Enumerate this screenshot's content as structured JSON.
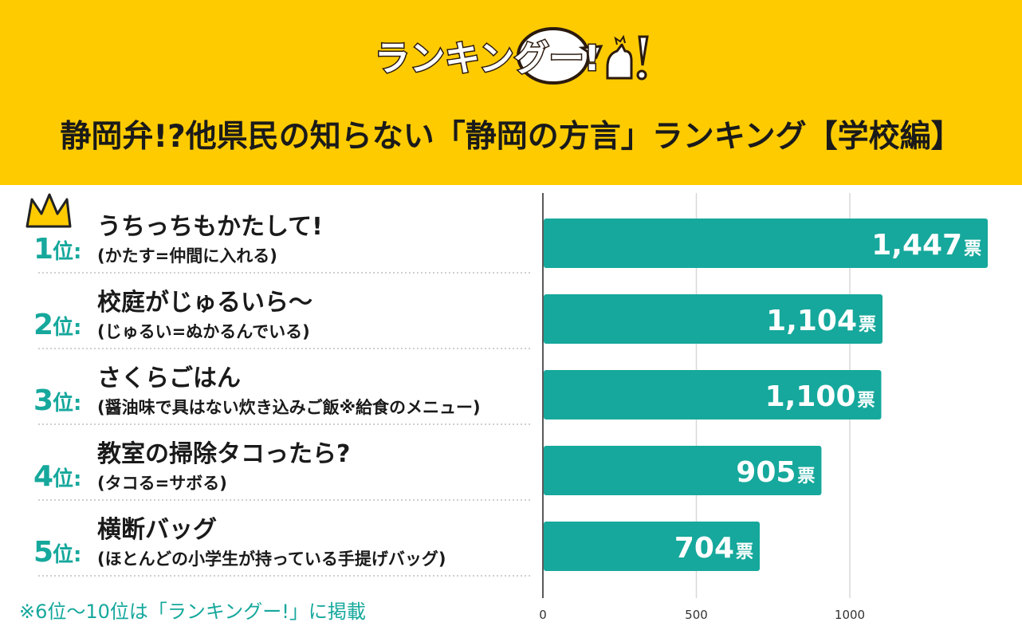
{
  "header": {
    "logo_text": "ランキングー!",
    "title": "静岡弁!?他県民の知らない「静岡の方言」ランキング【学校編】"
  },
  "colors": {
    "header_bg": "#FECB00",
    "bar": "#16A89C",
    "rank_text": "#16A89C",
    "crown": "#FECB00"
  },
  "icons": {
    "crown": "crown-icon",
    "logo": "rankingoo-logo-icon"
  },
  "chart_data": {
    "type": "bar",
    "orientation": "horizontal",
    "categories": [
      "うちっちもかたして!",
      "校庭がじゅるいら〜",
      "さくらごはん",
      "教室の掃除タコったら?",
      "横断バッグ"
    ],
    "notes": [
      "(かたす=仲間に入れる)",
      "(じゅるい=ぬかるんでいる)",
      "(醤油味で具はない炊き込みご飯※給食のメニュー)",
      "(タコる=サボる)",
      "(ほとんどの小学生が持っている手提げバッグ)"
    ],
    "ranks": [
      "1",
      "2",
      "3",
      "4",
      "5"
    ],
    "rank_suffix": "位",
    "rank_colon": ":",
    "values": [
      1447,
      1104,
      1100,
      905,
      704
    ],
    "value_labels": [
      "1,447",
      "1,104",
      "1,100",
      "905",
      "704"
    ],
    "unit": "票",
    "xlim": [
      0,
      1500
    ],
    "xticks": [
      0,
      500,
      1000
    ],
    "xtick_labels": [
      "0",
      "500",
      "1000"
    ],
    "grid": true
  },
  "footnote": "※6位〜10位は「ランキングー!」に掲載"
}
